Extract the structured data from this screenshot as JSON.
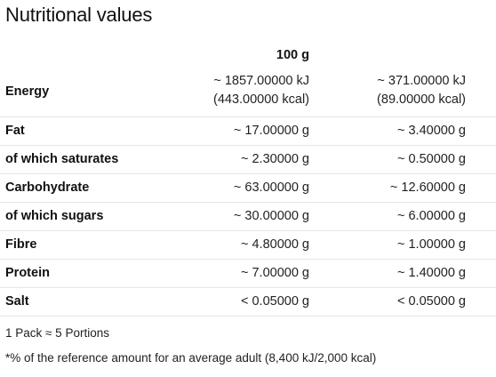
{
  "title": "Nutritional values",
  "table": {
    "header": {
      "col1": "100 g",
      "col2": ""
    },
    "energy": {
      "label": "Energy",
      "v1_kj": "~ 1857.00000 kJ",
      "v1_kcal": "(443.00000 kcal)",
      "v2_kj": "~ 371.00000 kJ",
      "v2_kcal": "(89.00000 kcal)"
    },
    "rows": [
      {
        "label": "Fat",
        "v1": "~ 17.00000 g",
        "v2": "~ 3.40000 g"
      },
      {
        "label": "of which saturates",
        "v1": "~ 2.30000 g",
        "v2": "~ 0.50000 g"
      },
      {
        "label": "Carbohydrate",
        "v1": "~ 63.00000 g",
        "v2": "~ 12.60000 g"
      },
      {
        "label": "of which sugars",
        "v1": "~ 30.00000 g",
        "v2": "~ 6.00000 g"
      },
      {
        "label": "Fibre",
        "v1": "~ 4.80000 g",
        "v2": "~ 1.00000 g"
      },
      {
        "label": "Protein",
        "v1": "~ 7.00000 g",
        "v2": "~ 1.40000 g"
      },
      {
        "label": "Salt",
        "v1": "< 0.05000 g",
        "v2": "< 0.05000 g"
      }
    ]
  },
  "notes": {
    "portions": "1 Pack ≈ 5 Portions",
    "reference": "*% of the reference amount for an average adult (8,400 kJ/2,000 kcal)"
  }
}
